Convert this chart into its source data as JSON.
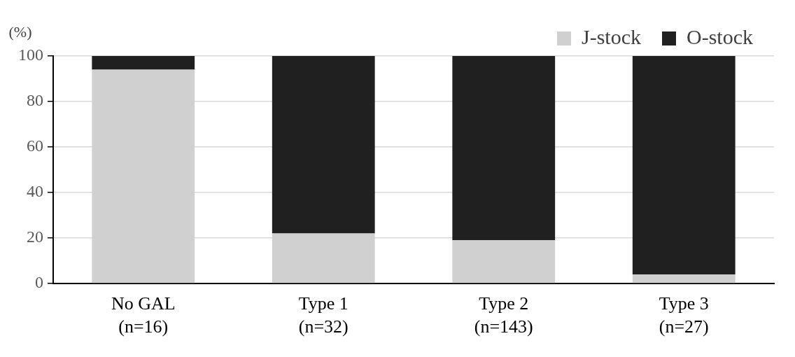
{
  "chart_data": {
    "type": "bar",
    "stacked": true,
    "ylabel": "(%)",
    "categories": [
      "No GAL\n(n=16)",
      "Type 1\n(n=32)",
      "Type 2\n(n=143)",
      "Type 3\n(n=27)"
    ],
    "series": [
      {
        "name": "J-stock",
        "color": "#d0d0d0",
        "values": [
          94,
          22,
          19,
          4
        ]
      },
      {
        "name": "O-stock",
        "color": "#202020",
        "values": [
          6,
          78,
          81,
          96
        ]
      }
    ],
    "ylim": [
      0,
      100
    ],
    "yticks": [
      0,
      20,
      40,
      60,
      80,
      100
    ],
    "grid": "y",
    "legend": "top right"
  }
}
